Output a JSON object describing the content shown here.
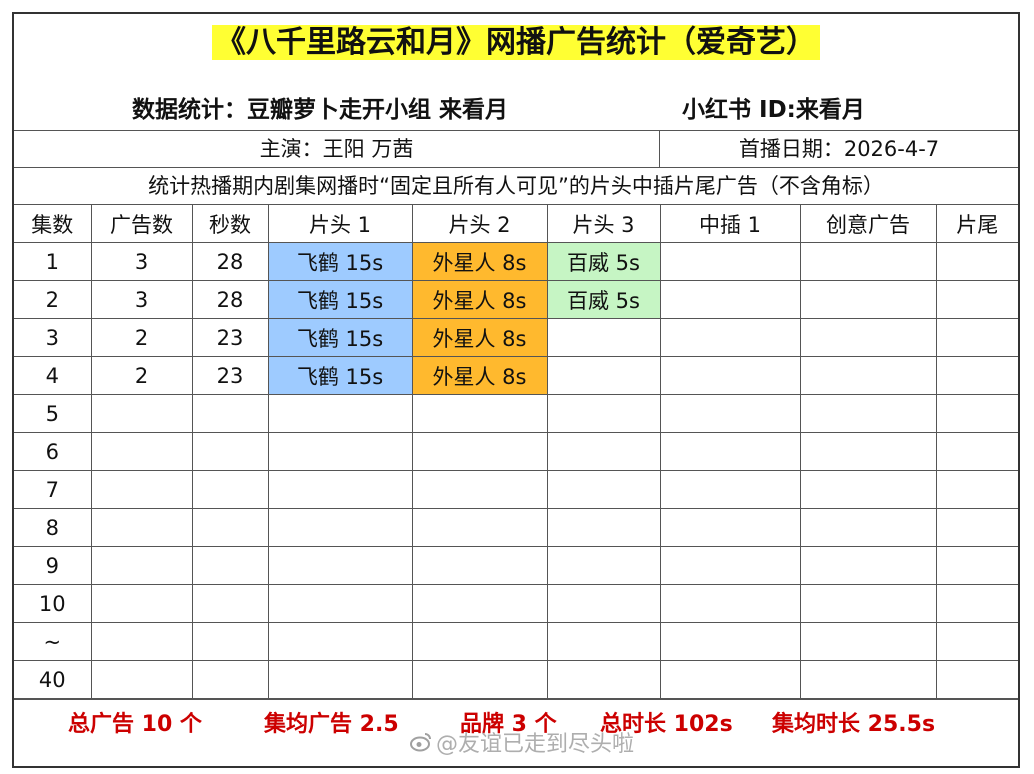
{
  "title": {
    "text": "《八千里路云和月》网播广告统计（爱奇艺）",
    "highlight_color": "#ffff33"
  },
  "subtitle": {
    "left": "数据统计：豆瓣萝卜走开小组  来看月",
    "right": "小红书 ID:来看月"
  },
  "info": {
    "cast": "主演：王阳  万茜",
    "premiere": "首播日期：2026-4-7"
  },
  "note": "统计热播期内剧集网播时“固定且所有人可见”的片头中插片尾广告（不含角标）",
  "table": {
    "headers": [
      "集数",
      "广告数",
      "秒数",
      "片头 1",
      "片头 2",
      "片头 3",
      "中插 1",
      "创意广告",
      "片尾"
    ],
    "rows": [
      {
        "ep": "1",
        "count": "3",
        "secs": "28",
        "h1": "飞鹤 15s",
        "h2": "外星人 8s",
        "h3": "百威 5s",
        "m1": "",
        "cr": "",
        "end": ""
      },
      {
        "ep": "2",
        "count": "3",
        "secs": "28",
        "h1": "飞鹤 15s",
        "h2": "外星人 8s",
        "h3": "百威 5s",
        "m1": "",
        "cr": "",
        "end": ""
      },
      {
        "ep": "3",
        "count": "2",
        "secs": "23",
        "h1": "飞鹤 15s",
        "h2": "外星人 8s",
        "h3": "",
        "m1": "",
        "cr": "",
        "end": ""
      },
      {
        "ep": "4",
        "count": "2",
        "secs": "23",
        "h1": "飞鹤 15s",
        "h2": "外星人 8s",
        "h3": "",
        "m1": "",
        "cr": "",
        "end": ""
      },
      {
        "ep": "5",
        "count": "",
        "secs": "",
        "h1": "",
        "h2": "",
        "h3": "",
        "m1": "",
        "cr": "",
        "end": ""
      },
      {
        "ep": "6",
        "count": "",
        "secs": "",
        "h1": "",
        "h2": "",
        "h3": "",
        "m1": "",
        "cr": "",
        "end": ""
      },
      {
        "ep": "7",
        "count": "",
        "secs": "",
        "h1": "",
        "h2": "",
        "h3": "",
        "m1": "",
        "cr": "",
        "end": ""
      },
      {
        "ep": "8",
        "count": "",
        "secs": "",
        "h1": "",
        "h2": "",
        "h3": "",
        "m1": "",
        "cr": "",
        "end": ""
      },
      {
        "ep": "9",
        "count": "",
        "secs": "",
        "h1": "",
        "h2": "",
        "h3": "",
        "m1": "",
        "cr": "",
        "end": ""
      },
      {
        "ep": "10",
        "count": "",
        "secs": "",
        "h1": "",
        "h2": "",
        "h3": "",
        "m1": "",
        "cr": "",
        "end": ""
      },
      {
        "ep": "~",
        "count": "",
        "secs": "",
        "h1": "",
        "h2": "",
        "h3": "",
        "m1": "",
        "cr": "",
        "end": ""
      },
      {
        "ep": "40",
        "count": "",
        "secs": "",
        "h1": "",
        "h2": "",
        "h3": "",
        "m1": "",
        "cr": "",
        "end": ""
      }
    ],
    "brand_colors": {
      "飞鹤": "#9ecbff",
      "外星人": "#ffb92e",
      "百威": "#c6f5c4"
    }
  },
  "footer": {
    "total_ads": "总广告 10 个",
    "avg_ads": "集均广告 2.5",
    "brands": "品牌 3 个",
    "total_time": "总时长 102s",
    "avg_time": "集均时长 25.5s",
    "text_color": "#cc0000"
  },
  "watermark": {
    "icon": "weibo-icon",
    "text": "@友谊已走到尽头啦"
  }
}
